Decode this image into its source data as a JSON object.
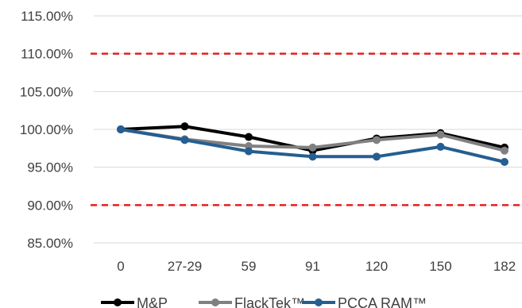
{
  "chart_data": {
    "type": "line",
    "title": "",
    "xlabel": "",
    "ylabel": "",
    "categories": [
      "0",
      "27-29",
      "59",
      "91",
      "120",
      "150",
      "182"
    ],
    "ylim": [
      85,
      115
    ],
    "yticks": [
      85,
      90,
      95,
      100,
      105,
      110,
      115
    ],
    "ytick_labels": [
      "85.00%",
      "90.00%",
      "95.00%",
      "100.00%",
      "105.00%",
      "110.00%",
      "115.00%"
    ],
    "grid": true,
    "legend_position": "bottom",
    "reference_lines": [
      {
        "value": 110,
        "style": "dashed",
        "color": "#e02020"
      },
      {
        "value": 90,
        "style": "dashed",
        "color": "#e02020"
      }
    ],
    "series": [
      {
        "name": "M&P",
        "color": "#000000",
        "values": [
          100.0,
          100.4,
          99.0,
          97.2,
          98.8,
          99.5,
          97.6
        ]
      },
      {
        "name": "FlackTek™",
        "color": "#808080",
        "values": [
          100.0,
          98.7,
          97.8,
          97.6,
          98.6,
          99.3,
          97.2
        ]
      },
      {
        "name": "PCCA RAM™",
        "color": "#255e91",
        "values": [
          100.0,
          98.6,
          97.1,
          96.4,
          96.4,
          97.7,
          95.7
        ]
      }
    ]
  }
}
